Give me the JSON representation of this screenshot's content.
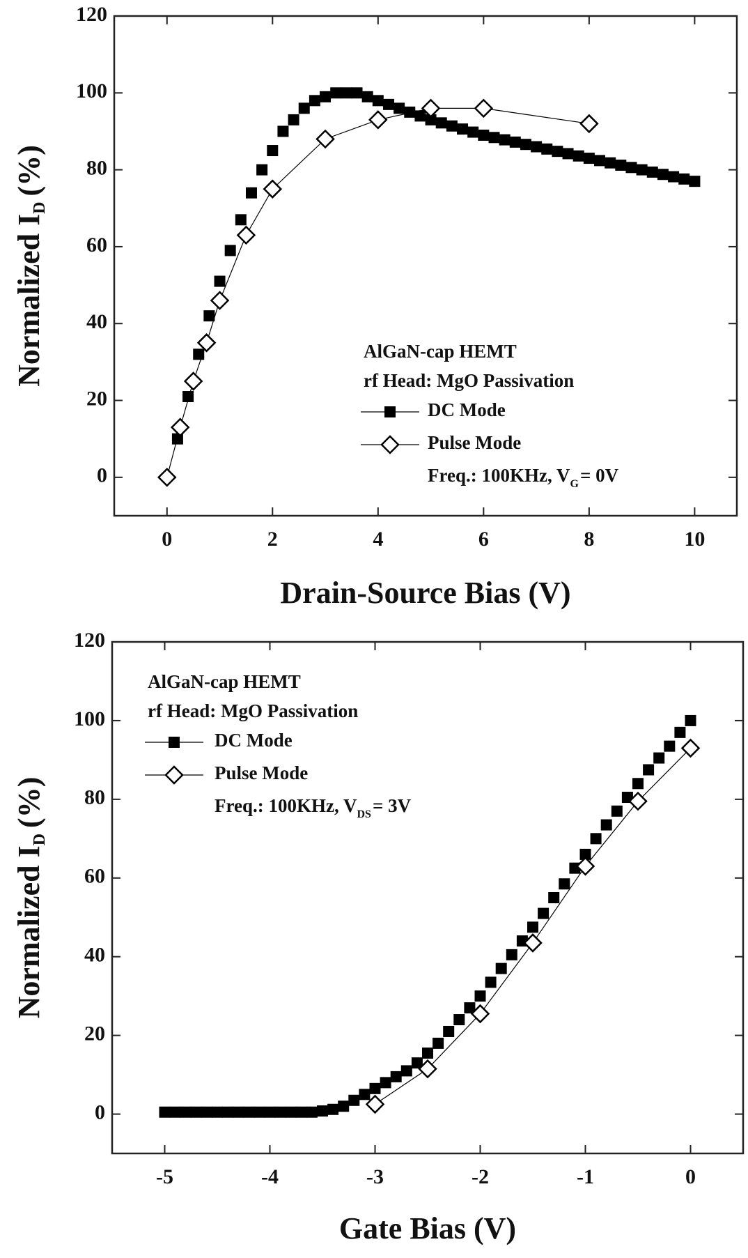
{
  "chart_data": [
    {
      "type": "line",
      "xlabel": "Drain-Source Bias (V)",
      "ylabel": [
        "Normalized I",
        "D",
        "(%)"
      ],
      "annotations": [
        "AlGaN-cap HEMT",
        "rf Head: MgO Passivation"
      ],
      "freq_note": [
        "Freq.: 100KHz, V",
        "G",
        "= 0V"
      ],
      "xlim": [
        -1,
        10.8
      ],
      "xticks": [
        0,
        2,
        4,
        6,
        8,
        10
      ],
      "ylim": [
        -10,
        120
      ],
      "yticks": [
        0,
        20,
        40,
        60,
        80,
        100,
        120
      ],
      "series": [
        {
          "name": "DC Mode",
          "color": "#000000",
          "marker": "square",
          "x": [
            0.2,
            0.4,
            0.6,
            0.8,
            1.0,
            1.2,
            1.4,
            1.6,
            1.8,
            2.0,
            2.2,
            2.4,
            2.6,
            2.8,
            3.0,
            3.2,
            3.4,
            3.6,
            3.8,
            4.0,
            4.2,
            4.4,
            4.6,
            4.8,
            5.0,
            5.2,
            5.4,
            5.6,
            5.8,
            6.0,
            6.2,
            6.4,
            6.6,
            6.8,
            7.0,
            7.2,
            7.4,
            7.6,
            7.8,
            8.0,
            8.2,
            8.4,
            8.6,
            8.8,
            9.0,
            9.2,
            9.4,
            9.6,
            9.8,
            10.0
          ],
          "values": [
            10,
            21,
            32,
            42,
            51,
            59,
            67,
            74,
            80,
            85,
            90,
            93,
            96,
            98,
            99,
            100,
            100,
            100,
            99,
            98,
            97,
            96,
            95,
            94,
            93,
            92.2,
            91.4,
            90.6,
            89.8,
            89,
            88.4,
            87.8,
            87.2,
            86.6,
            86,
            85.4,
            84.8,
            84.2,
            83.6,
            83,
            82.4,
            81.8,
            81.2,
            80.6,
            80,
            79.4,
            78.8,
            78.2,
            77.6,
            77
          ]
        },
        {
          "name": "Pulse Mode",
          "color": "#000000",
          "marker": "diamond",
          "x": [
            0,
            0.25,
            0.5,
            0.75,
            1,
            1.5,
            2,
            3,
            4,
            5,
            6,
            8
          ],
          "values": [
            0,
            13,
            25,
            35,
            46,
            63,
            75,
            88,
            93,
            96,
            96,
            92
          ]
        }
      ]
    },
    {
      "type": "line",
      "xlabel": "Gate Bias (V)",
      "ylabel": [
        "Normalized I",
        "D",
        "(%)"
      ],
      "annotations": [
        "AlGaN-cap HEMT",
        "rf Head: MgO Passivation"
      ],
      "freq_note": [
        "Freq.: 100KHz, V",
        "DS",
        "= 3V"
      ],
      "xlim": [
        -5.5,
        0.5
      ],
      "xticks": [
        -5,
        -4,
        -3,
        -2,
        -1,
        0
      ],
      "ylim": [
        -10,
        120
      ],
      "yticks": [
        0,
        20,
        40,
        60,
        80,
        100,
        120
      ],
      "series": [
        {
          "name": "DC Mode",
          "color": "#000000",
          "marker": "square",
          "x": [
            -5.0,
            -4.9,
            -4.8,
            -4.7,
            -4.6,
            -4.5,
            -4.4,
            -4.3,
            -4.2,
            -4.1,
            -4.0,
            -3.9,
            -3.8,
            -3.7,
            -3.6,
            -3.5,
            -3.4,
            -3.3,
            -3.2,
            -3.1,
            -3.0,
            -2.9,
            -2.8,
            -2.7,
            -2.6,
            -2.5,
            -2.4,
            -2.3,
            -2.2,
            -2.1,
            -2.0,
            -1.9,
            -1.8,
            -1.7,
            -1.6,
            -1.5,
            -1.4,
            -1.3,
            -1.2,
            -1.1,
            -1.0,
            -0.9,
            -0.8,
            -0.7,
            -0.6,
            -0.5,
            -0.4,
            -0.3,
            -0.2,
            -0.1,
            0.0
          ],
          "values": [
            0.5,
            0.5,
            0.5,
            0.5,
            0.5,
            0.5,
            0.5,
            0.5,
            0.5,
            0.5,
            0.5,
            0.5,
            0.5,
            0.5,
            0.5,
            0.8,
            1.2,
            2,
            3.5,
            5,
            6.5,
            8,
            9.5,
            11,
            13,
            15.5,
            18,
            21,
            24,
            27,
            30,
            33.5,
            37,
            40.5,
            44,
            47.5,
            51,
            55,
            58.5,
            62.5,
            66,
            70,
            73.5,
            77,
            80.5,
            84,
            87.5,
            90.5,
            93.5,
            97,
            100
          ]
        },
        {
          "name": "Pulse Mode",
          "color": "#000000",
          "marker": "diamond",
          "x": [
            -3,
            -2.5,
            -2,
            -1.5,
            -1,
            -0.5,
            0
          ],
          "values": [
            2.5,
            11.5,
            25.5,
            43.5,
            63,
            79.5,
            93
          ]
        }
      ]
    }
  ]
}
